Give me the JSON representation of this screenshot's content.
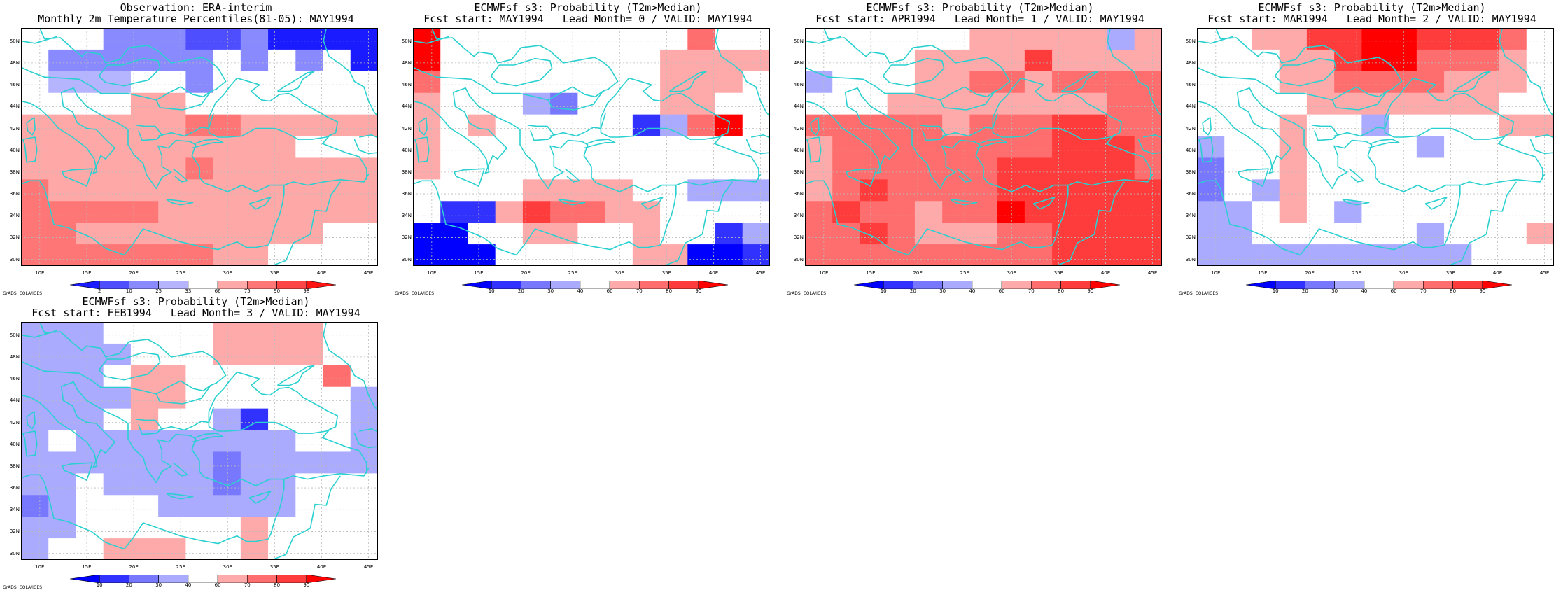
{
  "palettes": {
    "obs": [
      "#1b1bff",
      "#4e4eff",
      "#8a8aff",
      "#b4b4ff",
      "#ffffff",
      "#ffa8a8",
      "#ff7676",
      "#ff4646",
      "#ff1414"
    ],
    "prob": [
      "#0000ff",
      "#3232ff",
      "#7878ff",
      "#aaaaff",
      "#ffffff",
      "#ffaaaa",
      "#ff6e6e",
      "#ff3c3c",
      "#ff0000"
    ]
  },
  "colorbar_labels": {
    "obs": [
      "2",
      "10",
      "25",
      "33",
      "66",
      "75",
      "90",
      "98"
    ],
    "prob": [
      "10",
      "20",
      "30",
      "40",
      "60",
      "70",
      "80",
      "90"
    ]
  },
  "lat_labels": [
    "50N",
    "48N",
    "46N",
    "44N",
    "42N",
    "40N",
    "38N",
    "36N",
    "34N",
    "32N",
    "30N"
  ],
  "lon_labels": [
    "10E",
    "15E",
    "20E",
    "25E",
    "30E",
    "35E",
    "40E",
    "45E"
  ],
  "credit": "GrADS: COLA/IGES",
  "panels": [
    {
      "title1": "Observation: ERA-interim",
      "title2": "Monthly 2m Temperature Percentiles(81-05): MAY1994",
      "palette": "obs",
      "grid": [
        "4442221120000",
        "4222222424240",
        "4333442444444",
        "4444554444444",
        "5555556655555",
        "5555555555444",
        "5555556555555",
        "6555555555555",
        "6666655555555",
        "6655555555544",
        "6666666554444"
      ]
    },
    {
      "title1": "ECMWFsf s3: Probability (T2m>Median)",
      "title2": "Fcst start: MAY1994   Lead Month= 0 / VALID: MAY1994",
      "palette": "prob",
      "grid": [
        "8444444444644",
        "8444444445555",
        "6444444445554",
        "5444324445544",
        "5454444413684",
        "5444444444444",
        "5444444444444",
        "4444555544333",
        "4115766554444",
        "0044554454413",
        "0004444455001"
      ]
    },
    {
      "title1": "ECMWFsf s3: Probability (T2m>Median)",
      "title2": "Fcst start: APR1994   Lead Month= 1 / VALID: MAY1994",
      "palette": "prob",
      "grid": [
        "4444445555535",
        "4444555575555",
        "3444556656666",
        "4445555555566",
        "6666656667766",
        "5666666667776",
        "5666666777776",
        "5676666777777",
        "6766566877777",
        "6676555667777",
        "6666666667777"
      ]
    },
    {
      "title1": "ECMWFsf s3: Probability (T2m>Median)",
      "title2": "Fcst start: MAR1994   Lead Month= 2 / VALID: MAY1994",
      "palette": "prob",
      "grid": [
        "4455778877764",
        "4445578866654",
        "4445566665554",
        "4444555555544",
        "4445443444455",
        "3445444434444",
        "2445444444444",
        "2435444444444",
        "3345434444444",
        "3344444434445",
        "3333333333444"
      ]
    },
    {
      "title1": "ECMWFsf s3: Probability (T2m>Median)",
      "title2": "Fcst start: FEB1994   Lead Month= 3 / VALID: MAY1994",
      "palette": "prob",
      "grid": [
        "3334444555544",
        "3333444555544",
        "3334554444464",
        "3333554444443",
        "3334544314443",
        "3433333333443",
        "3333333233333",
        "3343333233444",
        "2344433333444",
        "3344444454444",
        "3445554454444"
      ]
    }
  ]
}
